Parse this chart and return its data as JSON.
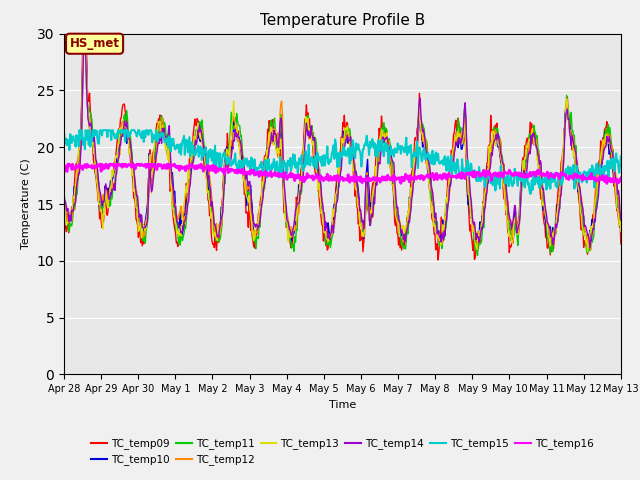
{
  "title": "Temperature Profile B",
  "xlabel": "Time",
  "ylabel": "Temperature (C)",
  "ylim": [
    0,
    30
  ],
  "yticks": [
    0,
    5,
    10,
    15,
    20,
    25,
    30
  ],
  "bg_color": "#e8e8e8",
  "hs_met_label": "HS_met",
  "series_order": [
    "TC_temp09",
    "TC_temp10",
    "TC_temp11",
    "TC_temp12",
    "TC_temp13",
    "TC_temp14",
    "TC_temp15",
    "TC_temp16"
  ],
  "colors": {
    "TC_temp09": "#ff0000",
    "TC_temp10": "#0000dd",
    "TC_temp11": "#00cc00",
    "TC_temp12": "#ff8800",
    "TC_temp13": "#dddd00",
    "TC_temp14": "#9900cc",
    "TC_temp15": "#00cccc",
    "TC_temp16": "#ff00ff"
  },
  "lw": {
    "TC_temp09": 1.0,
    "TC_temp10": 1.0,
    "TC_temp11": 1.0,
    "TC_temp12": 1.0,
    "TC_temp13": 1.0,
    "TC_temp14": 1.0,
    "TC_temp15": 1.5,
    "TC_temp16": 2.0
  },
  "x_tick_labels": [
    "Apr 28",
    "Apr 29",
    "Apr 30",
    "May 1",
    "May 2",
    "May 3",
    "May 4",
    "May 5",
    "May 6",
    "May 7",
    "May 8",
    "May 9",
    "May 10",
    "May 11",
    "May 12",
    "May 13"
  ],
  "n_days": 15,
  "title_fontsize": 11
}
